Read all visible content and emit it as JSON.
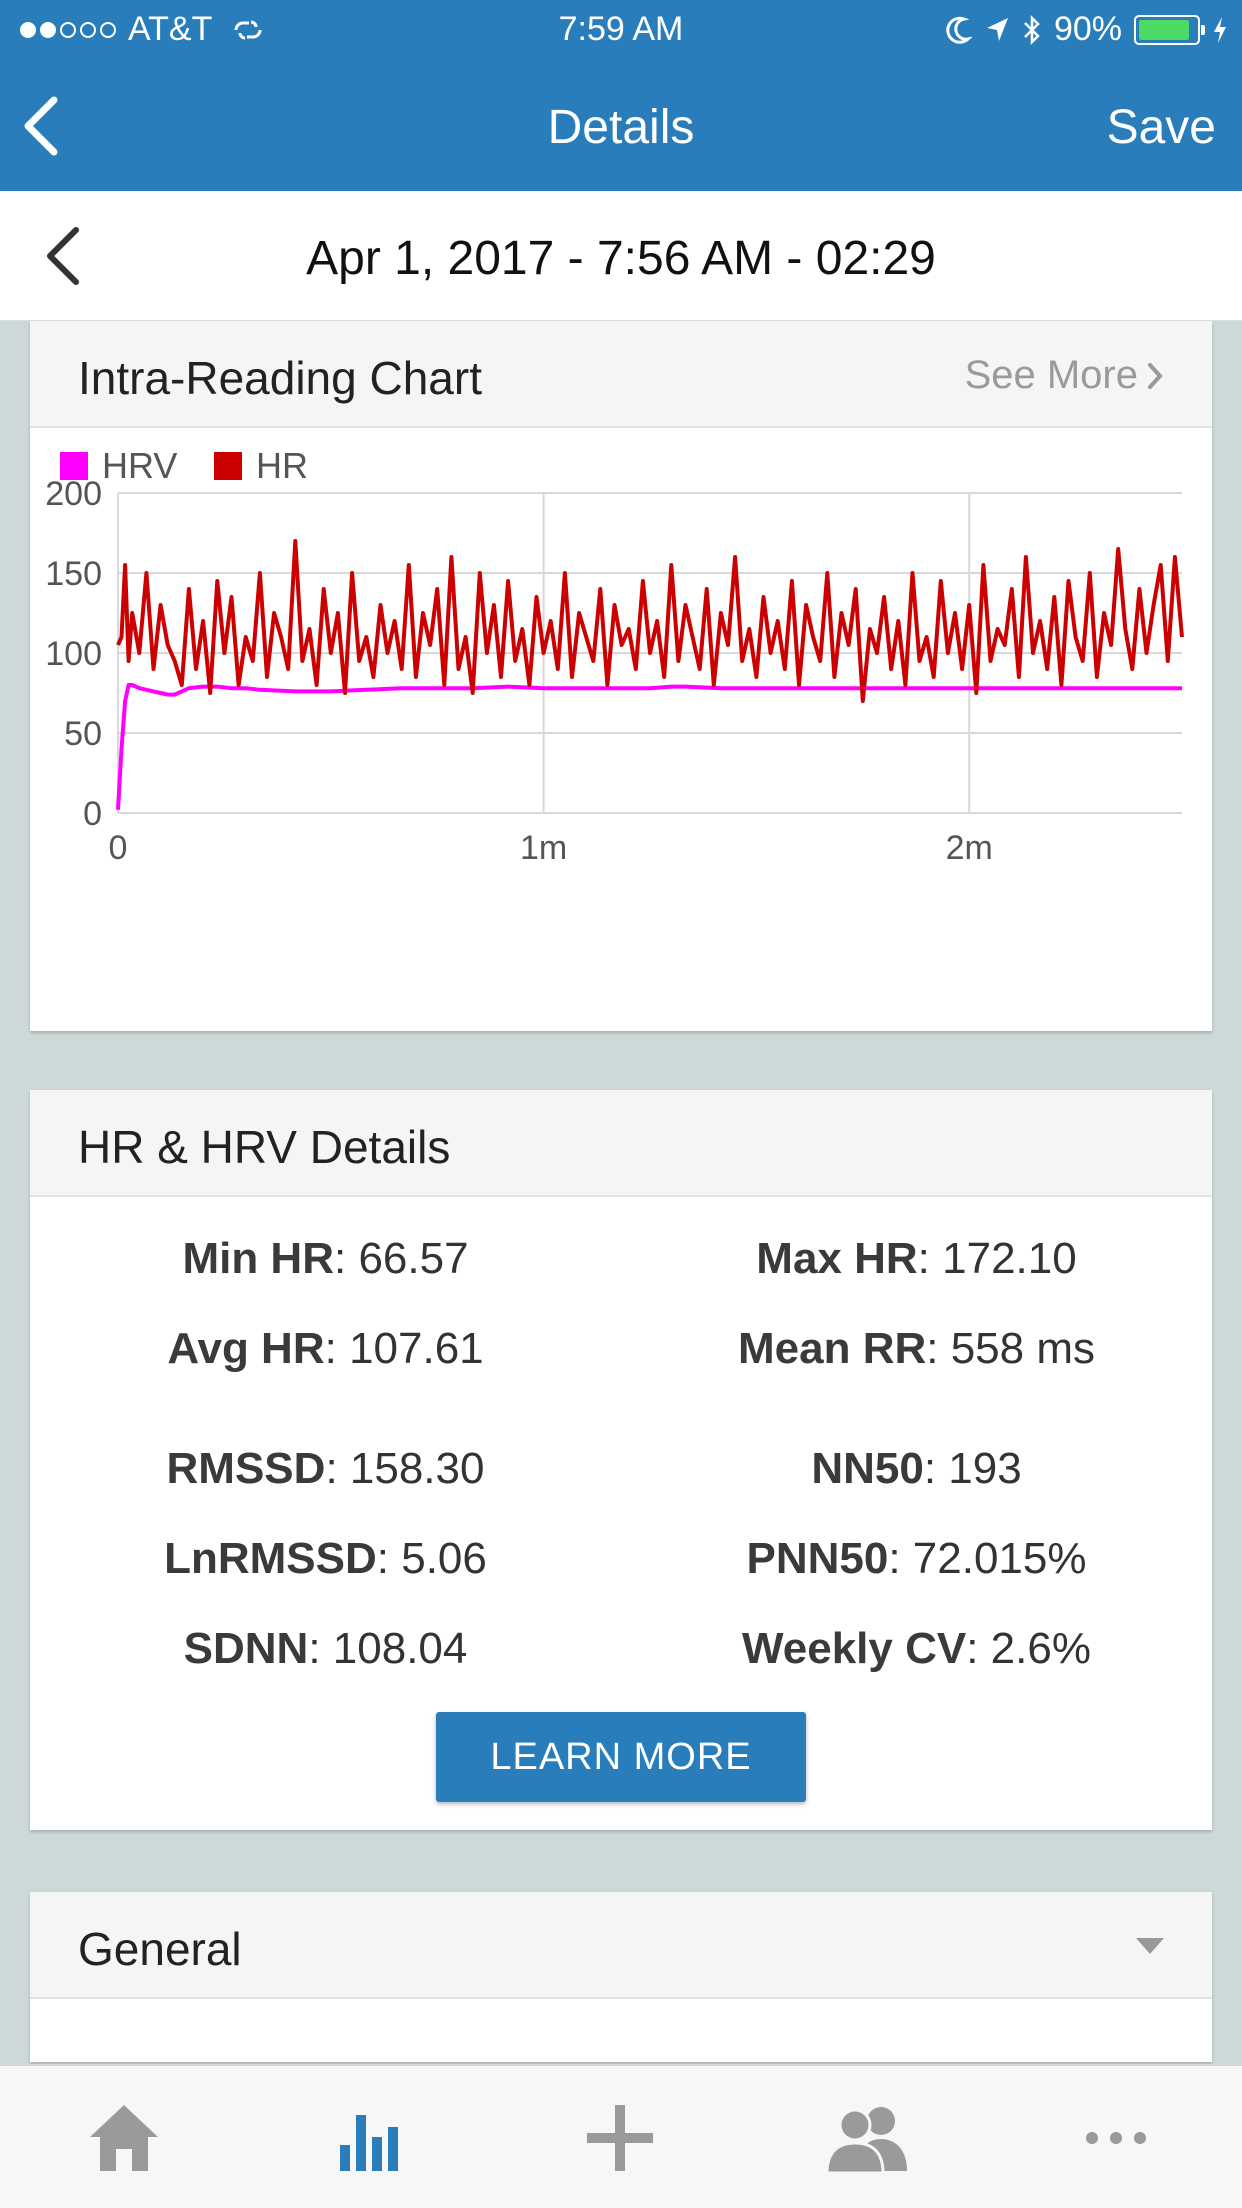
{
  "status_bar": {
    "carrier": "AT&T",
    "time": "7:59 AM",
    "battery": "90%",
    "battery_level": 0.9
  },
  "nav": {
    "title": "Details",
    "save_label": "Save"
  },
  "date_bar": {
    "text": "Apr 1, 2017 - 7:56 AM - 02:29"
  },
  "chart_card": {
    "title": "Intra-Reading Chart",
    "see_more": "See More"
  },
  "chart_data": {
    "type": "line",
    "legend": [
      {
        "name": "HRV",
        "color": "#ff00ff"
      },
      {
        "name": "HR",
        "color": "#cc0000"
      }
    ],
    "ylim": [
      0,
      200
    ],
    "yticks": [
      "0",
      "50",
      "100",
      "150",
      "200"
    ],
    "xlim": [
      0,
      150
    ],
    "xticks": [
      {
        "value": 0,
        "label": "0"
      },
      {
        "value": 60,
        "label": "1m"
      },
      {
        "value": 120,
        "label": "2m"
      }
    ],
    "grid": true,
    "series": [
      {
        "name": "HRV",
        "color": "#ff00ff",
        "x": [
          0,
          0.5,
          1,
          1.5,
          2,
          3,
          4,
          5,
          6,
          7,
          8,
          9,
          10,
          12,
          14,
          16,
          18,
          20,
          25,
          30,
          35,
          40,
          45,
          50,
          55,
          60,
          65,
          70,
          75,
          78,
          80,
          85,
          90,
          95,
          100,
          105,
          110,
          115,
          120,
          125,
          130,
          135,
          140,
          145,
          150
        ],
        "y": [
          2,
          40,
          70,
          80,
          80,
          78,
          77,
          76,
          75,
          74,
          74,
          76,
          78,
          79,
          79,
          78,
          78,
          77,
          76,
          76,
          77,
          78,
          78,
          78,
          79,
          78,
          78,
          78,
          78,
          79,
          79,
          78,
          78,
          78,
          78,
          78,
          78,
          78,
          78,
          78,
          78,
          78,
          78,
          78,
          78
        ]
      },
      {
        "name": "HR",
        "color": "#cc0000",
        "x": [
          0,
          0.5,
          1,
          1.5,
          2,
          3,
          4,
          5,
          6,
          7,
          8,
          9,
          10,
          11,
          12,
          13,
          14,
          15,
          16,
          17,
          18,
          19,
          20,
          21,
          22,
          23,
          24,
          25,
          26,
          27,
          28,
          29,
          30,
          31,
          32,
          33,
          34,
          35,
          36,
          37,
          38,
          39,
          40,
          41,
          42,
          43,
          44,
          45,
          46,
          47,
          48,
          49,
          50,
          51,
          52,
          53,
          54,
          55,
          56,
          57,
          58,
          59,
          60,
          61,
          62,
          63,
          64,
          65,
          66,
          67,
          68,
          69,
          70,
          71,
          72,
          73,
          74,
          75,
          76,
          77,
          78,
          79,
          80,
          81,
          82,
          83,
          84,
          85,
          86,
          87,
          88,
          89,
          90,
          91,
          92,
          93,
          94,
          95,
          96,
          97,
          98,
          99,
          100,
          101,
          102,
          103,
          104,
          105,
          106,
          107,
          108,
          109,
          110,
          111,
          112,
          113,
          114,
          115,
          116,
          117,
          118,
          119,
          120,
          121,
          122,
          123,
          124,
          125,
          126,
          127,
          128,
          129,
          130,
          131,
          132,
          133,
          134,
          135,
          136,
          137,
          138,
          139,
          140,
          141,
          142,
          143,
          144,
          145,
          146,
          147,
          148,
          149,
          150
        ],
        "y": [
          105,
          110,
          155,
          95,
          125,
          100,
          150,
          90,
          130,
          105,
          95,
          80,
          140,
          90,
          120,
          75,
          145,
          100,
          135,
          80,
          110,
          95,
          150,
          85,
          125,
          110,
          90,
          170,
          95,
          115,
          80,
          140,
          100,
          125,
          75,
          150,
          95,
          110,
          85,
          130,
          100,
          120,
          90,
          155,
          85,
          125,
          105,
          140,
          80,
          160,
          90,
          110,
          75,
          150,
          100,
          130,
          85,
          145,
          95,
          115,
          80,
          135,
          100,
          120,
          90,
          150,
          85,
          125,
          110,
          95,
          140,
          80,
          130,
          105,
          115,
          90,
          145,
          100,
          120,
          85,
          155,
          95,
          130,
          110,
          90,
          140,
          80,
          125,
          105,
          160,
          95,
          115,
          85,
          135,
          100,
          120,
          90,
          145,
          80,
          130,
          110,
          95,
          150,
          85,
          125,
          105,
          140,
          70,
          115,
          100,
          135,
          90,
          120,
          80,
          150,
          95,
          110,
          85,
          145,
          100,
          125,
          90,
          130,
          75,
          155,
          95,
          115,
          105,
          140,
          85,
          160,
          100,
          120,
          90,
          135,
          80,
          145,
          110,
          95,
          150,
          85,
          125,
          105,
          165,
          115,
          90,
          140,
          100,
          130,
          155,
          95,
          160,
          110
        ]
      }
    ]
  },
  "hr_card": {
    "title": "HR & HRV Details",
    "stats": [
      {
        "label": "Min HR",
        "value": "66.57"
      },
      {
        "label": "Max HR",
        "value": "172.10"
      },
      {
        "label": "Avg HR",
        "value": "107.61"
      },
      {
        "label": "Mean RR",
        "value": "558 ms"
      },
      {
        "label": "RMSSD",
        "value": "158.30"
      },
      {
        "label": "NN50",
        "value": "193"
      },
      {
        "label": "LnRMSSD",
        "value": "5.06"
      },
      {
        "label": "PNN50",
        "value": "72.015%"
      },
      {
        "label": "SDNN",
        "value": "108.04"
      },
      {
        "label": "Weekly CV",
        "value": "2.6%"
      }
    ],
    "learn_more": "LEARN MORE"
  },
  "general_card": {
    "title": "General"
  },
  "tabs": [
    {
      "icon": "home-icon"
    },
    {
      "icon": "bar-chart-icon",
      "active": true
    },
    {
      "icon": "plus-icon"
    },
    {
      "icon": "people-icon"
    },
    {
      "icon": "more-icon"
    }
  ],
  "colors": {
    "primary": "#2a7dbb",
    "hrv": "#ff00ff",
    "hr": "#cc0000",
    "tab_inactive": "#9a9a9a",
    "tab_active": "#2a7dbb"
  }
}
